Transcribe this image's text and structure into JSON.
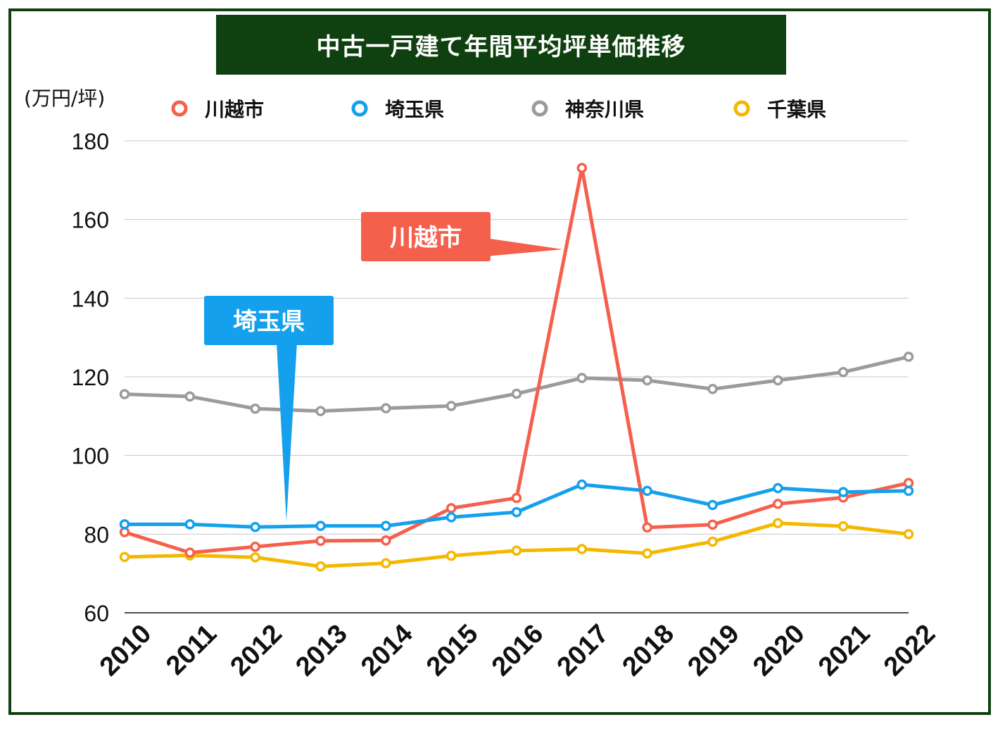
{
  "title": "中古一戸建て年間平均坪単価推移",
  "unit_label": "(万円/坪)",
  "colors": {
    "frame": "#0f4010",
    "kawagoe": "#f5604d",
    "saitama": "#14a0ec",
    "kanagawa": "#9b9b9b",
    "chiba": "#f5b800"
  },
  "callouts": {
    "kawagoe": "川越市",
    "saitama": "埼玉県"
  },
  "chart_data": {
    "type": "line",
    "x": [
      "2010",
      "2011",
      "2012",
      "2013",
      "2014",
      "2015",
      "2016",
      "2017",
      "2018",
      "2019",
      "2020",
      "2021",
      "2022"
    ],
    "ylim": [
      60,
      180
    ],
    "yticks": [
      60,
      80,
      100,
      120,
      140,
      160,
      180
    ],
    "grid": true,
    "legend_position": "top",
    "series": [
      {
        "name": "川越市",
        "color": "#f5604d",
        "values": [
          80.5,
          75.3,
          76.8,
          78.3,
          78.4,
          86.6,
          89.2,
          173.1,
          81.7,
          82.4,
          87.7,
          89.3,
          93.0
        ]
      },
      {
        "name": "埼玉県",
        "color": "#14a0ec",
        "values": [
          82.5,
          82.5,
          81.8,
          82.1,
          82.1,
          84.3,
          85.6,
          92.6,
          91.0,
          87.4,
          91.7,
          90.7,
          91.0
        ]
      },
      {
        "name": "神奈川県",
        "color": "#9b9b9b",
        "values": [
          115.6,
          115.0,
          111.9,
          111.3,
          112.0,
          112.6,
          115.7,
          119.7,
          119.1,
          116.9,
          119.1,
          121.2,
          125.1
        ]
      },
      {
        "name": "千葉県",
        "color": "#f5b800",
        "values": [
          74.2,
          74.6,
          74.1,
          71.8,
          72.6,
          74.5,
          75.8,
          76.2,
          75.1,
          78.1,
          82.8,
          82.0,
          80.0
        ]
      }
    ]
  }
}
